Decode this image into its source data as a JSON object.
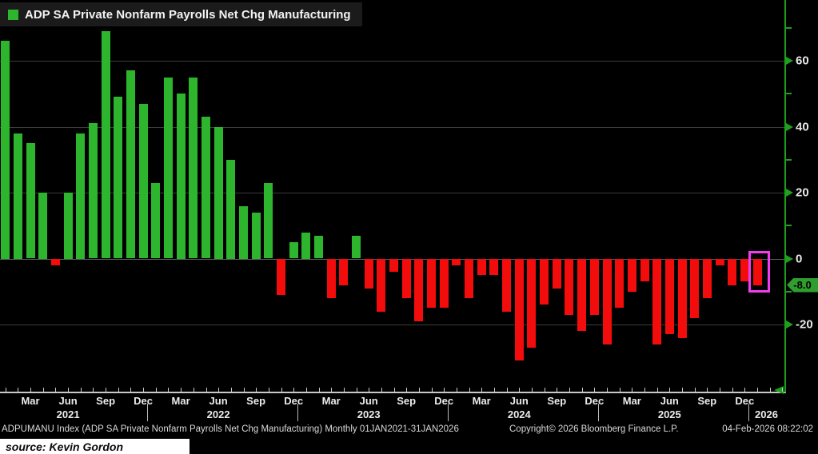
{
  "legend": {
    "label": "ADP SA Private Nonfarm Payrolls Net Chg Manufacturing",
    "swatch_color": "#2db52d"
  },
  "colors": {
    "background": "#000000",
    "positive_bar": "#2db52d",
    "negative_bar": "#f20c0c",
    "axis_green": "#1da11d",
    "gridline": "#3c3c3c",
    "zero_line": "#5a5a5a",
    "highlight_box": "#f23cf2",
    "badge_background": "#2f9e2f",
    "x_axis_line": "#c9c9c9"
  },
  "chart_data": {
    "type": "bar",
    "title": "ADP SA Private Nonfarm Payrolls Net Chg Manufacturing",
    "xlabel": "",
    "ylabel": "",
    "grid": "on",
    "legend_position": "top-left",
    "ylim": [
      -40,
      78
    ],
    "yticks_major": [
      60,
      40,
      20,
      0,
      -20
    ],
    "yticks_minor": [
      70,
      50,
      30,
      10,
      -10
    ],
    "x_quarter_labels": [
      "Mar",
      "Jun",
      "Sep",
      "Dec"
    ],
    "years": [
      "2021",
      "2022",
      "2023",
      "2024",
      "2025",
      "2026"
    ],
    "categories": [
      "Jan 2021",
      "Feb 2021",
      "Mar 2021",
      "Apr 2021",
      "May 2021",
      "Jun 2021",
      "Jul 2021",
      "Aug 2021",
      "Sep 2021",
      "Oct 2021",
      "Nov 2021",
      "Dec 2021",
      "Jan 2022",
      "Feb 2022",
      "Mar 2022",
      "Apr 2022",
      "May 2022",
      "Jun 2022",
      "Jul 2022",
      "Aug 2022",
      "Sep 2022",
      "Oct 2022",
      "Nov 2022",
      "Dec 2022",
      "Jan 2023",
      "Feb 2023",
      "Mar 2023",
      "Apr 2023",
      "May 2023",
      "Jun 2023",
      "Jul 2023",
      "Aug 2023",
      "Sep 2023",
      "Oct 2023",
      "Nov 2023",
      "Dec 2023",
      "Jan 2024",
      "Feb 2024",
      "Mar 2024",
      "Apr 2024",
      "May 2024",
      "Jun 2024",
      "Jul 2024",
      "Aug 2024",
      "Sep 2024",
      "Oct 2024",
      "Nov 2024",
      "Dec 2024",
      "Jan 2025",
      "Feb 2025",
      "Mar 2025",
      "Apr 2025",
      "May 2025",
      "Jun 2025",
      "Jul 2025",
      "Aug 2025",
      "Sep 2025",
      "Oct 2025",
      "Nov 2025",
      "Dec 2025",
      "Jan 2026"
    ],
    "values": [
      66,
      38,
      35,
      20,
      -2,
      20,
      38,
      41,
      69,
      49,
      57,
      47,
      23,
      55,
      50,
      55,
      43,
      40,
      30,
      16,
      14,
      23,
      -11,
      5,
      8,
      7,
      -12,
      -8,
      7,
      -9,
      -16,
      -4,
      -12,
      -19,
      -15,
      -15,
      -2,
      -12,
      -5,
      -5,
      -16,
      -31,
      -27,
      -14,
      -9,
      -17,
      -22,
      -17,
      -26,
      -15,
      -10,
      -7,
      -26,
      -23,
      -24,
      -18,
      -12,
      -2,
      -8,
      -7,
      -8
    ],
    "last_point": {
      "category": "Jan 2026",
      "value": -8.0,
      "label": "-8.0",
      "highlighted": true
    }
  },
  "footer": {
    "left": "ADPUMANU Index (ADP SA Private Nonfarm Payrolls Net Chg Manufacturing) Monthly 01JAN2021-31JAN2026",
    "copyright": "Copyright© 2026 Bloomberg Finance L.P.",
    "datetime": "04-Feb-2026 08:22:02",
    "source": "source: Kevin Gordon"
  }
}
